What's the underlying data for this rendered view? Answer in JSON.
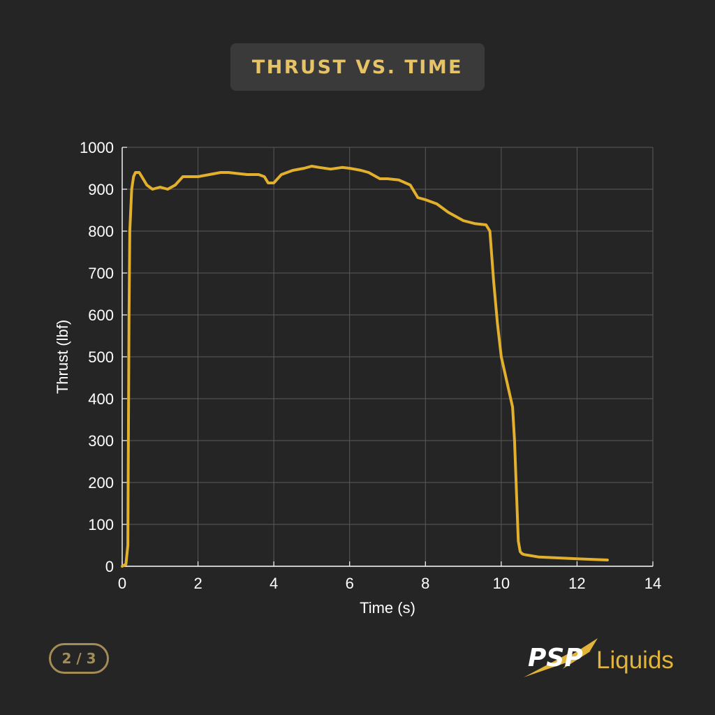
{
  "title": "THRUST VS. TIME",
  "page_indicator": "2 / 3",
  "logo": {
    "primary": "PSP",
    "secondary": "Liquids",
    "icon": "bolt-icon"
  },
  "colors": {
    "background": "#242524",
    "title_box": "#3b3a3a",
    "title_text": "#e6c367",
    "line": "#e3b02e",
    "grid": "#5a5a5a",
    "axis_text": "#ffffff"
  },
  "chart_data": {
    "type": "line",
    "title": "",
    "xlabel": "Time (s)",
    "ylabel": "Thrust (lbf)",
    "xlim": [
      0,
      14
    ],
    "ylim": [
      0,
      1000
    ],
    "x_ticks": [
      0,
      2,
      4,
      6,
      8,
      10,
      12,
      14
    ],
    "y_ticks": [
      0,
      100,
      200,
      300,
      400,
      500,
      600,
      700,
      800,
      900,
      1000
    ],
    "grid": true,
    "legend": "none",
    "series": [
      {
        "x": [
          0,
          0.1,
          0.15,
          0.18,
          0.2,
          0.25,
          0.3,
          0.35,
          0.45,
          0.55,
          0.65,
          0.8,
          1.0,
          1.2,
          1.4,
          1.6,
          1.8,
          2.0,
          2.3,
          2.6,
          2.8,
          3.0,
          3.3,
          3.6,
          3.75,
          3.85,
          4.0,
          4.2,
          4.5,
          4.8,
          5.0,
          5.2,
          5.5,
          5.8,
          6.0,
          6.3,
          6.5,
          6.8,
          7.0,
          7.3,
          7.6,
          7.8,
          8.0,
          8.3,
          8.6,
          9.0,
          9.3,
          9.6,
          9.7,
          9.8,
          9.9,
          10.0,
          10.2,
          10.3,
          10.35,
          10.4,
          10.45,
          10.5,
          10.55,
          10.6,
          10.8,
          11.0,
          11.5,
          12.0,
          12.5,
          12.8
        ],
        "y": [
          0,
          5,
          50,
          600,
          800,
          900,
          930,
          940,
          940,
          925,
          910,
          900,
          905,
          900,
          910,
          930,
          930,
          930,
          935,
          940,
          940,
          938,
          935,
          935,
          930,
          915,
          915,
          935,
          945,
          950,
          955,
          952,
          948,
          952,
          950,
          945,
          940,
          925,
          925,
          922,
          910,
          880,
          875,
          865,
          845,
          825,
          818,
          815,
          800,
          680,
          580,
          500,
          420,
          380,
          300,
          180,
          60,
          35,
          30,
          28,
          25,
          22,
          20,
          18,
          16,
          15
        ]
      }
    ]
  }
}
